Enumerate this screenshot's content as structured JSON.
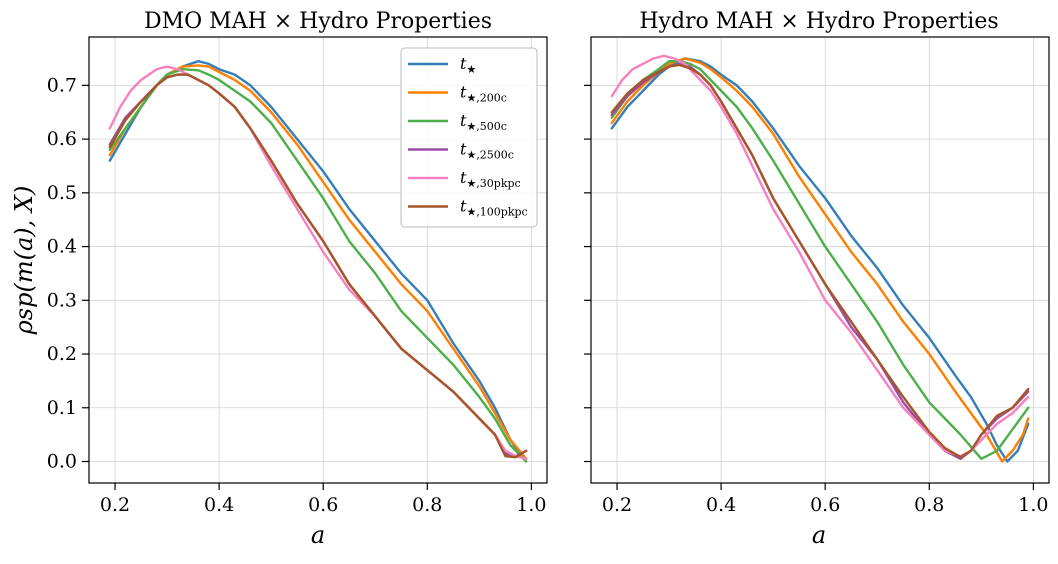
{
  "figure": {
    "ylabel": "ρsp(m(a), X)"
  },
  "legend": {
    "location": "upper-right of left panel",
    "entries": [
      {
        "series": "t_star",
        "main": "t",
        "sub": "★"
      },
      {
        "series": "t_star_200c",
        "main": "t",
        "sub": "★,200c"
      },
      {
        "series": "t_star_500c",
        "main": "t",
        "sub": "★,500c"
      },
      {
        "series": "t_star_2500c",
        "main": "t",
        "sub": "★,2500c"
      },
      {
        "series": "t_star_30pkpc",
        "main": "t",
        "sub": "★,30pkpc"
      },
      {
        "series": "t_star_100pkpc",
        "main": "t",
        "sub": "★,100pkpc"
      }
    ]
  },
  "chart_data": [
    {
      "type": "line",
      "title": "DMO MAH × Hydro Properties",
      "xlabel": "a",
      "ylabel": "ρsp(m(a), X)",
      "xlim": [
        0.15,
        1.03
      ],
      "ylim": [
        -0.04,
        0.79
      ],
      "xticks": [
        0.2,
        0.4,
        0.6,
        0.8,
        1.0
      ],
      "yticks": [
        0.0,
        0.1,
        0.2,
        0.3,
        0.4,
        0.5,
        0.6,
        0.7
      ],
      "grid": true,
      "series": [
        {
          "key": "t_star",
          "color": "#377eb8",
          "x": [
            0.19,
            0.22,
            0.25,
            0.28,
            0.3,
            0.33,
            0.36,
            0.38,
            0.4,
            0.43,
            0.46,
            0.5,
            0.55,
            0.6,
            0.65,
            0.7,
            0.75,
            0.8,
            0.85,
            0.9,
            0.93,
            0.96,
            0.98
          ],
          "y": [
            0.56,
            0.61,
            0.66,
            0.7,
            0.72,
            0.735,
            0.745,
            0.74,
            0.73,
            0.72,
            0.7,
            0.66,
            0.6,
            0.54,
            0.47,
            0.41,
            0.35,
            0.3,
            0.22,
            0.15,
            0.1,
            0.04,
            0.01
          ]
        },
        {
          "key": "t_star_200c",
          "color": "#ff7f00",
          "x": [
            0.19,
            0.22,
            0.25,
            0.28,
            0.3,
            0.33,
            0.36,
            0.38,
            0.4,
            0.43,
            0.46,
            0.5,
            0.55,
            0.6,
            0.65,
            0.7,
            0.75,
            0.8,
            0.85,
            0.9,
            0.93,
            0.96,
            0.99
          ],
          "y": [
            0.57,
            0.62,
            0.66,
            0.7,
            0.72,
            0.735,
            0.737,
            0.735,
            0.725,
            0.71,
            0.69,
            0.65,
            0.59,
            0.52,
            0.45,
            0.39,
            0.33,
            0.28,
            0.21,
            0.14,
            0.09,
            0.04,
            0.005
          ]
        },
        {
          "key": "t_star_500c",
          "color": "#4daf4a",
          "x": [
            0.19,
            0.22,
            0.25,
            0.28,
            0.3,
            0.33,
            0.36,
            0.38,
            0.4,
            0.43,
            0.46,
            0.5,
            0.55,
            0.6,
            0.65,
            0.7,
            0.75,
            0.8,
            0.85,
            0.9,
            0.93,
            0.96,
            0.99
          ],
          "y": [
            0.58,
            0.62,
            0.66,
            0.7,
            0.72,
            0.73,
            0.728,
            0.72,
            0.71,
            0.69,
            0.67,
            0.63,
            0.56,
            0.49,
            0.41,
            0.35,
            0.28,
            0.23,
            0.18,
            0.12,
            0.08,
            0.03,
            0.0
          ]
        },
        {
          "key": "t_star_2500c",
          "color": "#984ea3",
          "x": [
            0.19,
            0.22,
            0.25,
            0.28,
            0.3,
            0.32,
            0.34,
            0.36,
            0.38,
            0.4,
            0.43,
            0.46,
            0.5,
            0.55,
            0.6,
            0.65,
            0.7,
            0.75,
            0.8,
            0.85,
            0.9,
            0.93,
            0.95,
            0.97,
            0.99
          ],
          "y": [
            0.59,
            0.64,
            0.67,
            0.7,
            0.715,
            0.72,
            0.72,
            0.71,
            0.7,
            0.685,
            0.66,
            0.62,
            0.56,
            0.48,
            0.41,
            0.33,
            0.27,
            0.21,
            0.17,
            0.13,
            0.08,
            0.05,
            0.015,
            0.01,
            0.02
          ]
        },
        {
          "key": "t_star_30pkpc",
          "color": "#f781bf",
          "x": [
            0.19,
            0.21,
            0.23,
            0.25,
            0.28,
            0.3,
            0.32,
            0.34,
            0.36,
            0.38,
            0.4,
            0.43,
            0.46,
            0.5,
            0.55,
            0.6,
            0.65,
            0.7,
            0.75,
            0.8,
            0.85,
            0.9,
            0.93,
            0.95,
            0.97,
            0.99
          ],
          "y": [
            0.62,
            0.66,
            0.69,
            0.71,
            0.73,
            0.735,
            0.73,
            0.72,
            0.71,
            0.7,
            0.685,
            0.66,
            0.62,
            0.55,
            0.47,
            0.39,
            0.32,
            0.27,
            0.21,
            0.17,
            0.13,
            0.08,
            0.05,
            0.02,
            0.01,
            0.005
          ]
        },
        {
          "key": "t_star_100pkpc",
          "color": "#a65628",
          "x": [
            0.19,
            0.22,
            0.25,
            0.28,
            0.3,
            0.32,
            0.34,
            0.36,
            0.38,
            0.4,
            0.43,
            0.46,
            0.5,
            0.55,
            0.6,
            0.65,
            0.7,
            0.75,
            0.8,
            0.85,
            0.9,
            0.93,
            0.95,
            0.97,
            0.99
          ],
          "y": [
            0.585,
            0.635,
            0.67,
            0.7,
            0.715,
            0.72,
            0.72,
            0.71,
            0.7,
            0.685,
            0.66,
            0.62,
            0.56,
            0.48,
            0.41,
            0.33,
            0.27,
            0.21,
            0.17,
            0.13,
            0.08,
            0.05,
            0.01,
            0.008,
            0.02
          ]
        }
      ]
    },
    {
      "type": "line",
      "title": "Hydro MAH × Hydro Properties",
      "xlabel": "a",
      "xlim": [
        0.15,
        1.03
      ],
      "ylim": [
        -0.04,
        0.79
      ],
      "xticks": [
        0.2,
        0.4,
        0.6,
        0.8,
        1.0
      ],
      "yticks": [
        0.0,
        0.1,
        0.2,
        0.3,
        0.4,
        0.5,
        0.6,
        0.7
      ],
      "ytick_labels_visible": false,
      "grid": true,
      "series": [
        {
          "key": "t_star",
          "color": "#377eb8",
          "x": [
            0.19,
            0.22,
            0.25,
            0.28,
            0.3,
            0.33,
            0.36,
            0.38,
            0.4,
            0.43,
            0.46,
            0.5,
            0.55,
            0.6,
            0.65,
            0.7,
            0.75,
            0.8,
            0.85,
            0.88,
            0.91,
            0.93,
            0.95,
            0.97,
            0.99
          ],
          "y": [
            0.62,
            0.66,
            0.69,
            0.72,
            0.735,
            0.75,
            0.745,
            0.735,
            0.72,
            0.7,
            0.67,
            0.62,
            0.55,
            0.49,
            0.42,
            0.36,
            0.29,
            0.23,
            0.16,
            0.12,
            0.07,
            0.03,
            0.0,
            0.02,
            0.07
          ]
        },
        {
          "key": "t_star_200c",
          "color": "#ff7f00",
          "x": [
            0.19,
            0.22,
            0.25,
            0.28,
            0.3,
            0.33,
            0.36,
            0.38,
            0.4,
            0.43,
            0.46,
            0.5,
            0.55,
            0.6,
            0.65,
            0.7,
            0.75,
            0.8,
            0.85,
            0.88,
            0.91,
            0.94,
            0.96,
            0.98,
            0.99
          ],
          "y": [
            0.63,
            0.67,
            0.7,
            0.725,
            0.74,
            0.75,
            0.742,
            0.73,
            0.715,
            0.69,
            0.66,
            0.61,
            0.53,
            0.46,
            0.39,
            0.33,
            0.26,
            0.2,
            0.13,
            0.09,
            0.05,
            0.0,
            0.02,
            0.05,
            0.08
          ]
        },
        {
          "key": "t_star_500c",
          "color": "#4daf4a",
          "x": [
            0.19,
            0.22,
            0.25,
            0.28,
            0.3,
            0.32,
            0.34,
            0.36,
            0.38,
            0.4,
            0.43,
            0.46,
            0.5,
            0.55,
            0.6,
            0.65,
            0.7,
            0.75,
            0.8,
            0.83,
            0.86,
            0.9,
            0.93,
            0.96,
            0.99
          ],
          "y": [
            0.64,
            0.68,
            0.71,
            0.73,
            0.745,
            0.745,
            0.74,
            0.73,
            0.71,
            0.69,
            0.66,
            0.62,
            0.56,
            0.48,
            0.4,
            0.33,
            0.26,
            0.18,
            0.11,
            0.08,
            0.05,
            0.005,
            0.02,
            0.06,
            0.1
          ]
        },
        {
          "key": "t_star_2500c",
          "color": "#984ea3",
          "x": [
            0.19,
            0.22,
            0.25,
            0.28,
            0.3,
            0.32,
            0.34,
            0.36,
            0.38,
            0.4,
            0.43,
            0.46,
            0.5,
            0.55,
            0.6,
            0.65,
            0.7,
            0.75,
            0.8,
            0.83,
            0.86,
            0.88,
            0.9,
            0.93,
            0.96,
            0.99
          ],
          "y": [
            0.645,
            0.68,
            0.705,
            0.725,
            0.735,
            0.74,
            0.735,
            0.72,
            0.7,
            0.67,
            0.62,
            0.57,
            0.49,
            0.41,
            0.33,
            0.25,
            0.19,
            0.11,
            0.05,
            0.02,
            0.005,
            0.02,
            0.05,
            0.08,
            0.1,
            0.13
          ]
        },
        {
          "key": "t_star_30pkpc",
          "color": "#f781bf",
          "x": [
            0.19,
            0.21,
            0.23,
            0.25,
            0.27,
            0.29,
            0.31,
            0.33,
            0.35,
            0.38,
            0.4,
            0.43,
            0.46,
            0.5,
            0.55,
            0.6,
            0.65,
            0.7,
            0.75,
            0.8,
            0.83,
            0.86,
            0.88,
            0.9,
            0.93,
            0.96,
            0.99
          ],
          "y": [
            0.68,
            0.71,
            0.73,
            0.74,
            0.75,
            0.755,
            0.75,
            0.74,
            0.72,
            0.69,
            0.66,
            0.61,
            0.55,
            0.47,
            0.39,
            0.3,
            0.24,
            0.17,
            0.1,
            0.05,
            0.02,
            0.01,
            0.02,
            0.04,
            0.07,
            0.09,
            0.12
          ]
        },
        {
          "key": "t_star_100pkpc",
          "color": "#a65628",
          "x": [
            0.19,
            0.22,
            0.25,
            0.28,
            0.3,
            0.32,
            0.34,
            0.36,
            0.38,
            0.4,
            0.43,
            0.46,
            0.5,
            0.55,
            0.6,
            0.65,
            0.7,
            0.75,
            0.8,
            0.83,
            0.86,
            0.88,
            0.9,
            0.93,
            0.96,
            0.99
          ],
          "y": [
            0.65,
            0.685,
            0.71,
            0.725,
            0.735,
            0.738,
            0.732,
            0.72,
            0.7,
            0.67,
            0.62,
            0.57,
            0.49,
            0.41,
            0.33,
            0.26,
            0.19,
            0.12,
            0.055,
            0.025,
            0.008,
            0.02,
            0.05,
            0.085,
            0.1,
            0.135
          ]
        }
      ]
    }
  ]
}
